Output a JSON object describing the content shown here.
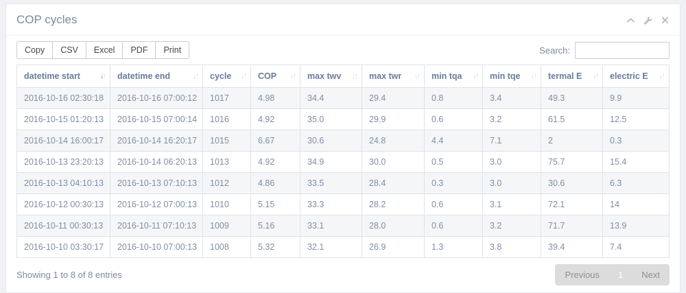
{
  "panel": {
    "title": "COP cycles",
    "tools": [
      {
        "icon": "chevron-up-icon",
        "meaning": "collapse"
      },
      {
        "icon": "wrench-icon",
        "meaning": "settings"
      },
      {
        "icon": "close-icon",
        "meaning": "close"
      }
    ]
  },
  "toolbar": {
    "buttons": [
      "Copy",
      "CSV",
      "Excel",
      "PDF",
      "Print"
    ],
    "search_label": "Search:",
    "search_value": ""
  },
  "table": {
    "columns": [
      {
        "label": "datetime start",
        "sorted": "desc"
      },
      {
        "label": "datetime end",
        "sorted": "none"
      },
      {
        "label": "cycle",
        "sorted": "none"
      },
      {
        "label": "COP",
        "sorted": "none"
      },
      {
        "label": "max twv",
        "sorted": "none"
      },
      {
        "label": "max twr",
        "sorted": "none"
      },
      {
        "label": "min tqa",
        "sorted": "none"
      },
      {
        "label": "min tqe",
        "sorted": "none"
      },
      {
        "label": "termal E",
        "sorted": "none"
      },
      {
        "label": "electric E",
        "sorted": "none"
      }
    ],
    "rows": [
      [
        "2016-10-16 02:30:18",
        "2016-10-16 07:00:12",
        "1017",
        "4.98",
        "34.4",
        "29.4",
        "0.8",
        "3.4",
        "49.3",
        "9.9"
      ],
      [
        "2016-10-15 01:20:13",
        "2016-10-15 07:00:14",
        "1016",
        "4.92",
        "35.0",
        "29.9",
        "0.6",
        "3.2",
        "61.5",
        "12.5"
      ],
      [
        "2016-10-14 16:00:17",
        "2016-10-14 16:20:17",
        "1015",
        "6.67",
        "30.6",
        "24.8",
        "4.4",
        "7.1",
        "2",
        "0.3"
      ],
      [
        "2016-10-13 23:20:13",
        "2016-10-14 06:20:13",
        "1013",
        "4.92",
        "34.9",
        "30.0",
        "0.5",
        "3.0",
        "75.7",
        "15.4"
      ],
      [
        "2016-10-13 04:10:13",
        "2016-10-13 07:10:13",
        "1012",
        "4.86",
        "33.5",
        "28.4",
        "0.3",
        "3.0",
        "30.6",
        "6.3"
      ],
      [
        "2016-10-12 00:30:13",
        "2016-10-12 07:00:13",
        "1010",
        "5.15",
        "33.3",
        "28.2",
        "0.6",
        "3.1",
        "72.1",
        "14"
      ],
      [
        "2016-10-11 00:30:13",
        "2016-10-11 07:10:13",
        "1009",
        "5.16",
        "33.1",
        "28.0",
        "0.6",
        "3.2",
        "71.7",
        "13.9"
      ],
      [
        "2016-10-10 03:30:17",
        "2016-10-10 07:00:13",
        "1008",
        "5.32",
        "32.1",
        "26.9",
        "1.3",
        "3.8",
        "39.4",
        "7.4"
      ]
    ]
  },
  "footer": {
    "info": "Showing 1 to 8 of 8 entries",
    "pagination": {
      "previous": "Previous",
      "current": "1",
      "next": "Next"
    }
  },
  "icons": {
    "sort": "down-up-arrows",
    "sort_glyph_down": "↓",
    "sort_glyph_up": "↑"
  },
  "colors": {
    "cell_text": "#7f8ea6",
    "header_text": "#687c9c",
    "title_text": "#7d8a9c",
    "stripe": "#f5f6f8",
    "border": "#dfe3e8",
    "pagination_bg": "#dcdcdc",
    "pagination_current_text": "#ffffff"
  }
}
